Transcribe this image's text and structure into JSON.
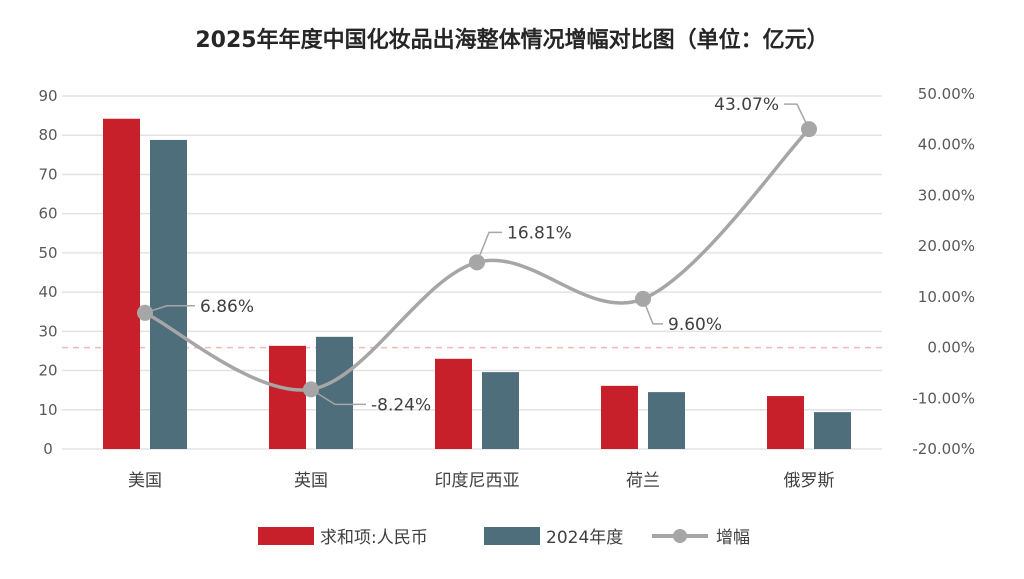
{
  "chart_data": {
    "type": "bar",
    "title": "2025年年度中国化妆品出海整体情况增幅对比图（单位：亿元）",
    "categories": [
      "美国",
      "英国",
      "印度尼西亚",
      "荷兰",
      "俄罗斯"
    ],
    "series": [
      {
        "name": "求和项:人民币",
        "type": "bar",
        "axis": "left",
        "color": "#C8202A",
        "values": [
          84.2,
          26.3,
          23.0,
          16.1,
          13.5
        ]
      },
      {
        "name": "2024年度",
        "type": "bar",
        "axis": "left",
        "color": "#4E6E7C",
        "values": [
          78.8,
          28.6,
          19.6,
          14.5,
          9.4
        ]
      },
      {
        "name": "增幅",
        "type": "line",
        "axis": "right",
        "color": "#A6A6A6",
        "values": [
          6.86,
          -8.24,
          16.81,
          9.6,
          43.07
        ],
        "labels": [
          "6.86%",
          "-8.24%",
          "16.81%",
          "9.60%",
          "43.07%"
        ]
      }
    ],
    "y_left": {
      "range": [
        0,
        90
      ],
      "ticks": [
        "0",
        "10",
        "20",
        "30",
        "40",
        "50",
        "60",
        "70",
        "80",
        "90"
      ]
    },
    "y_right": {
      "range": [
        -20,
        50
      ],
      "ticks": [
        "-20.00%",
        "-10.00%",
        "0.00%",
        "10.00%",
        "20.00%",
        "30.00%",
        "40.00%",
        "50.00%"
      ]
    },
    "grid": true,
    "legend_position": "bottom",
    "zero_line_color": "#F4B6B6"
  }
}
